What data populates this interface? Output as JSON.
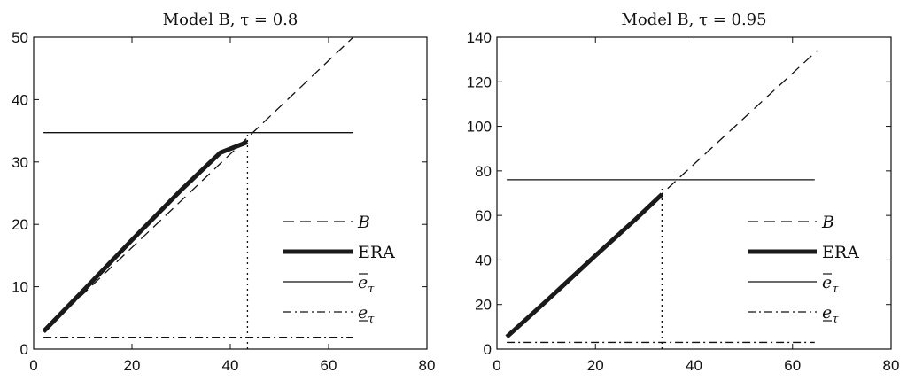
{
  "chart_data": [
    {
      "type": "line",
      "title": "Model B, τ = 0.8",
      "xlabel": "",
      "ylabel": "",
      "xlim": [
        0,
        80
      ],
      "ylim": [
        0,
        50
      ],
      "xticks": [
        0,
        20,
        40,
        60,
        80
      ],
      "yticks": [
        0,
        10,
        20,
        30,
        40,
        50
      ],
      "grid": false,
      "legend_position": "lower-right",
      "series": [
        {
          "name": "B",
          "style": "dashed",
          "color": "#111111",
          "x": [
            2,
            65
          ],
          "y": [
            2.8,
            50
          ]
        },
        {
          "name": "ERA",
          "style": "thick",
          "color": "#1a1a1a",
          "x": [
            2,
            10,
            20,
            30,
            38,
            43.5
          ],
          "y": [
            2.8,
            9.3,
            17.5,
            25.5,
            31.5,
            33.2
          ]
        },
        {
          "name": "ē_τ",
          "style": "solid",
          "color": "#111111",
          "x": [
            2,
            65
          ],
          "y": [
            34.7,
            34.7
          ]
        },
        {
          "name": "e̲_τ",
          "style": "dashdot",
          "color": "#111111",
          "x": [
            2,
            65
          ],
          "y": [
            1.9,
            1.9
          ]
        }
      ],
      "vline": {
        "x": 43.5,
        "y_from": 0,
        "y_to": 34.7
      }
    },
    {
      "type": "line",
      "title": "Model B, τ = 0.95",
      "xlabel": "",
      "ylabel": "",
      "xlim": [
        0,
        80
      ],
      "ylim": [
        0,
        140
      ],
      "xticks": [
        0,
        20,
        40,
        60,
        80
      ],
      "yticks": [
        0,
        20,
        40,
        60,
        80,
        100,
        120,
        140
      ],
      "grid": false,
      "legend_position": "lower-right",
      "series": [
        {
          "name": "B",
          "style": "dashed",
          "color": "#111111",
          "x": [
            2,
            65
          ],
          "y": [
            5.5,
            134
          ]
        },
        {
          "name": "ERA",
          "style": "thick",
          "color": "#1a1a1a",
          "x": [
            2,
            10,
            20,
            28,
            33.5
          ],
          "y": [
            5.5,
            21.5,
            42,
            58,
            69.5
          ]
        },
        {
          "name": "ē_τ",
          "style": "solid",
          "color": "#111111",
          "x": [
            2,
            64.5
          ],
          "y": [
            76,
            76
          ]
        },
        {
          "name": "e̲_τ",
          "style": "dashdot",
          "color": "#111111",
          "x": [
            2,
            64.5
          ],
          "y": [
            3,
            3
          ]
        }
      ],
      "vline": {
        "x": 33.5,
        "y_from": 0,
        "y_to": 72
      }
    }
  ]
}
